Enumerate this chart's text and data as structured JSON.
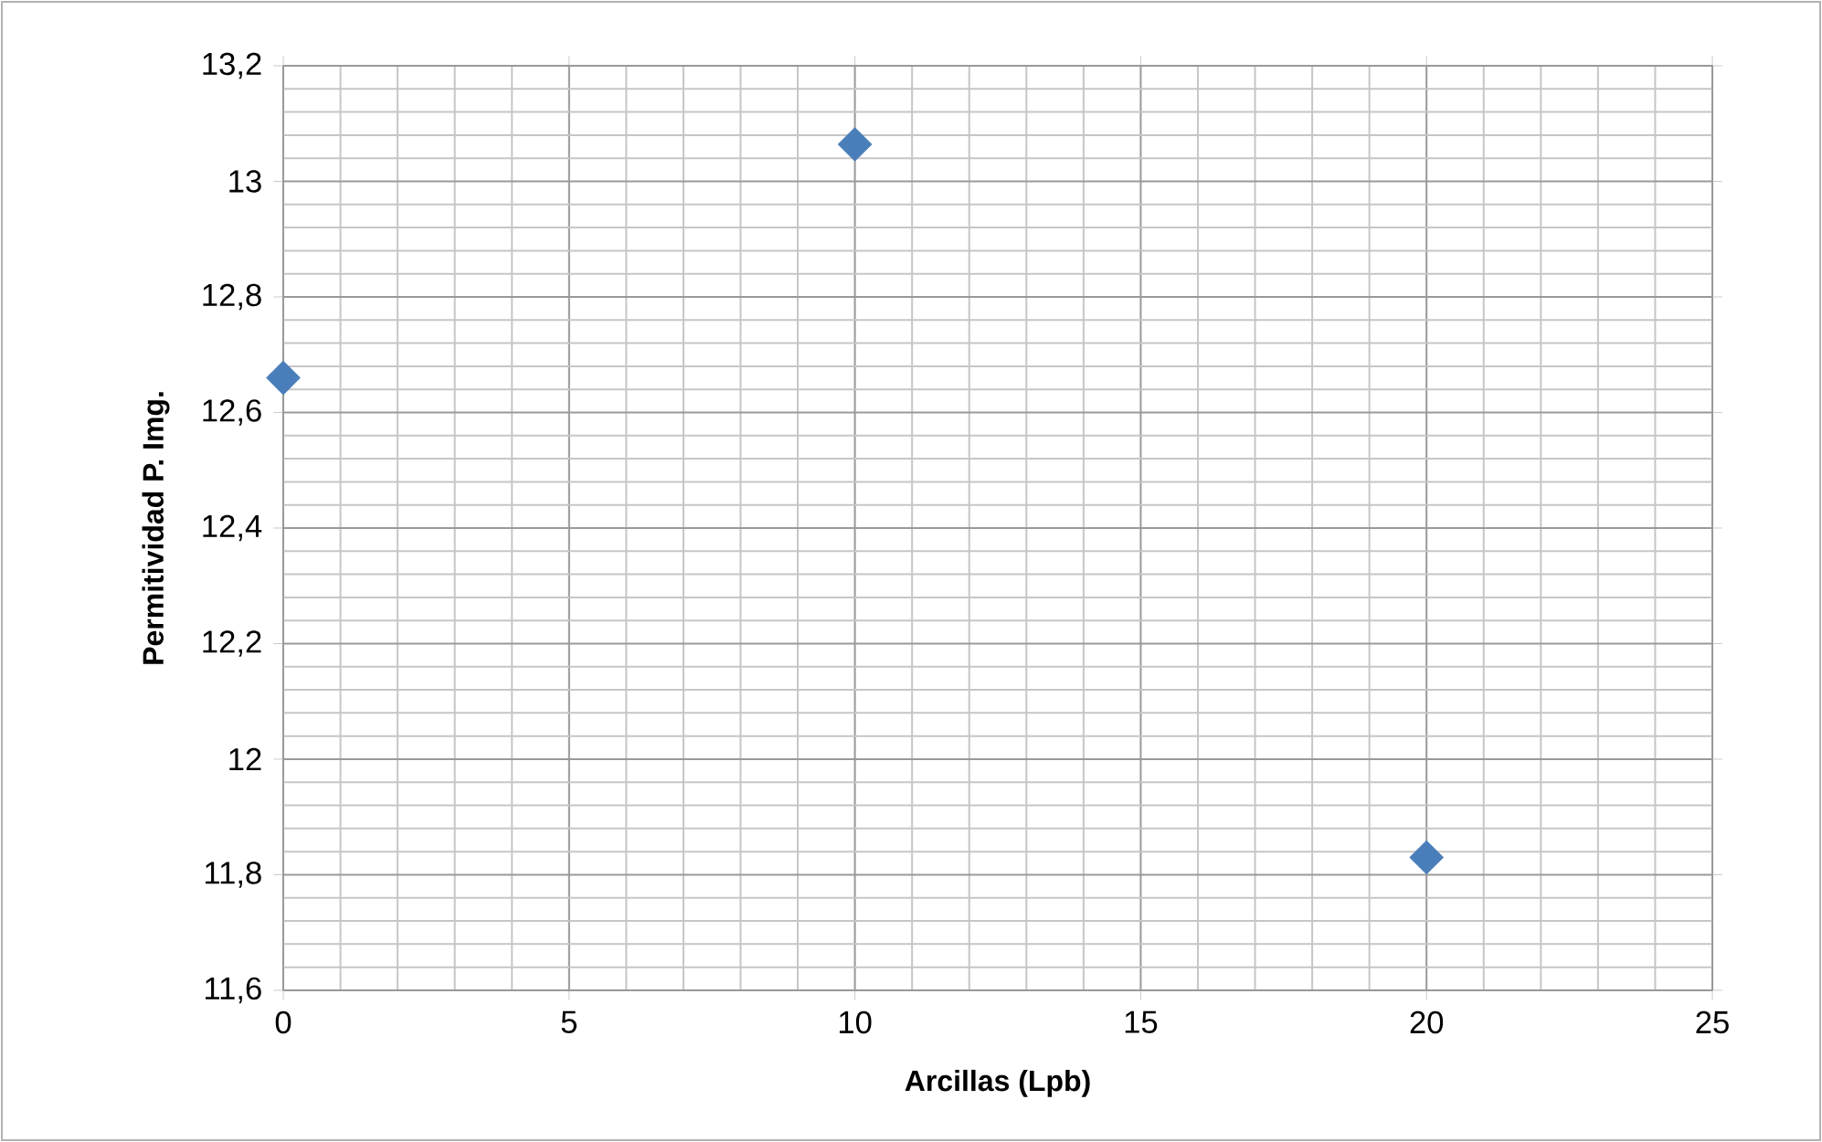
{
  "chart_data": {
    "type": "scatter",
    "xlabel": "Arcillas (Lpb)",
    "ylabel": "Permitividad P. Img.",
    "x": [
      0,
      10,
      20
    ],
    "values": [
      12.66,
      13.064,
      11.83
    ],
    "color": "#4a7ebb",
    "marker": "diamond",
    "xlim": [
      0,
      25
    ],
    "xticks": [
      0,
      5,
      10,
      15,
      20,
      25
    ],
    "ylim": [
      11.6,
      13.2
    ],
    "yticks": [
      {
        "value": 11.6,
        "label": "11,6"
      },
      {
        "value": 11.8,
        "label": "11,8"
      },
      {
        "value": 12,
        "label": "12"
      },
      {
        "value": 12.2,
        "label": "12,2"
      },
      {
        "value": 12.4,
        "label": "12,4"
      },
      {
        "value": 12.6,
        "label": "12,6"
      },
      {
        "value": 12.8,
        "label": "12,8"
      },
      {
        "value": 13,
        "label": "13"
      },
      {
        "value": 13.2,
        "label": "13,2"
      }
    ],
    "grid": true
  }
}
